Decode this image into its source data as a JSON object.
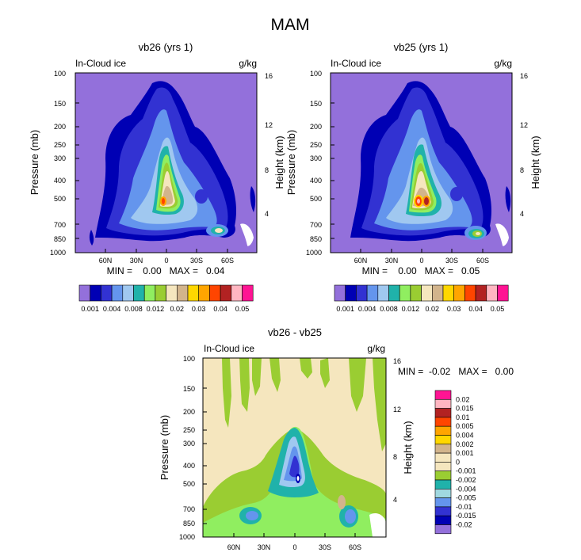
{
  "main_title": "MAM",
  "chart_data": [
    {
      "type": "heatmap",
      "title": "vb26 (yrs 1)",
      "left_label": "In-Cloud ice",
      "units": "g/kg",
      "ylabel": "Pressure (mb)",
      "ylabel_right": "Height (km)",
      "yticks": [
        "100",
        "150",
        "200",
        "250",
        "300",
        "400",
        "500",
        "700",
        "850",
        "1000"
      ],
      "yticks_right": [
        "16",
        "12",
        "8",
        "4"
      ],
      "xticks": [
        "60N",
        "30N",
        "0",
        "30S",
        "60S"
      ],
      "stats_text": "MIN =    0.00   MAX =   0.04",
      "colorbar_labels": [
        "0.001",
        "0.004",
        "0.008",
        "0.012",
        "0.02",
        "0.03",
        "0.04",
        "0.05"
      ],
      "max_value": 0.04
    },
    {
      "type": "heatmap",
      "title": "vb25 (yrs 1)",
      "left_label": "In-Cloud ice",
      "units": "g/kg",
      "ylabel": "Pressure (mb)",
      "ylabel_right": "Height (km)",
      "yticks": [
        "100",
        "150",
        "200",
        "250",
        "300",
        "400",
        "500",
        "700",
        "850",
        "1000"
      ],
      "yticks_right": [
        "16",
        "12",
        "8",
        "4"
      ],
      "xticks": [
        "60N",
        "30N",
        "0",
        "30S",
        "60S"
      ],
      "stats_text": "MIN =    0.00   MAX =   0.05",
      "colorbar_labels": [
        "0.001",
        "0.004",
        "0.008",
        "0.012",
        "0.02",
        "0.03",
        "0.04",
        "0.05"
      ],
      "max_value": 0.05
    },
    {
      "type": "heatmap",
      "title": "vb26 - vb25",
      "left_label": "In-Cloud ice",
      "units": "g/kg",
      "ylabel": "Pressure (mb)",
      "ylabel_right": "Height (km)",
      "yticks": [
        "100",
        "150",
        "200",
        "250",
        "300",
        "400",
        "500",
        "700",
        "850",
        "1000"
      ],
      "yticks_right": [
        "16",
        "12",
        "8",
        "4"
      ],
      "xticks": [
        "60N",
        "30N",
        "0",
        "30S",
        "60S"
      ],
      "stats_text": "MIN =  -0.02   MAX =   0.00",
      "colorbar_labels": [
        "0.02",
        "0.015",
        "0.01",
        "0.005",
        "0.004",
        "0.002",
        "0.001",
        "0",
        "-0.001",
        "-0.002",
        "-0.004",
        "-0.005",
        "-0.01",
        "-0.015",
        "-0.02"
      ]
    }
  ],
  "colors": {
    "seq_palette": [
      "#9370db",
      "#0000b4",
      "#3232d2",
      "#6495ed",
      "#a0c8f0",
      "#20b2aa",
      "#90ee60",
      "#9acd32",
      "#f5e6be",
      "#d2b48c",
      "#ffd700",
      "#ffa500",
      "#ff4500",
      "#b22222",
      "#ffb6c1",
      "#ff1493"
    ],
    "diff_palette": [
      "#ff1493",
      "#ffb6c1",
      "#b22222",
      "#ff4500",
      "#ffa500",
      "#ffd700",
      "#d2b48c",
      "#f5e6be",
      "#f5e6be",
      "#9acd32",
      "#20b2aa",
      "#a0d8e0",
      "#6495ed",
      "#3232d2",
      "#0000b4",
      "#9370db"
    ]
  }
}
